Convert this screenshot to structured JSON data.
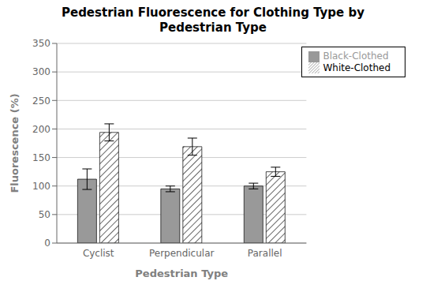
{
  "chart_data": {
    "type": "bar",
    "title": "Pedestrian Fluorescence for Clothing Type by\nPedestrian Type",
    "xlabel": "Pedestrian Type",
    "ylabel": "Fluorescence (%)",
    "categories": [
      "Cyclist",
      "Perpendicular",
      "Parallel"
    ],
    "series": [
      {
        "name": "Black-Clothed",
        "color": "#999999",
        "values": [
          112,
          95,
          100
        ],
        "errors": [
          18,
          5,
          5
        ]
      },
      {
        "name": "White-Clothed",
        "color": "#ffffff",
        "values": [
          194,
          169,
          125
        ],
        "errors": [
          15,
          15,
          8
        ]
      }
    ],
    "ylim": [
      0,
      350
    ],
    "yticks": [
      0,
      50,
      100,
      150,
      200,
      250,
      300,
      350
    ],
    "grid": true,
    "legend": "upper right"
  }
}
